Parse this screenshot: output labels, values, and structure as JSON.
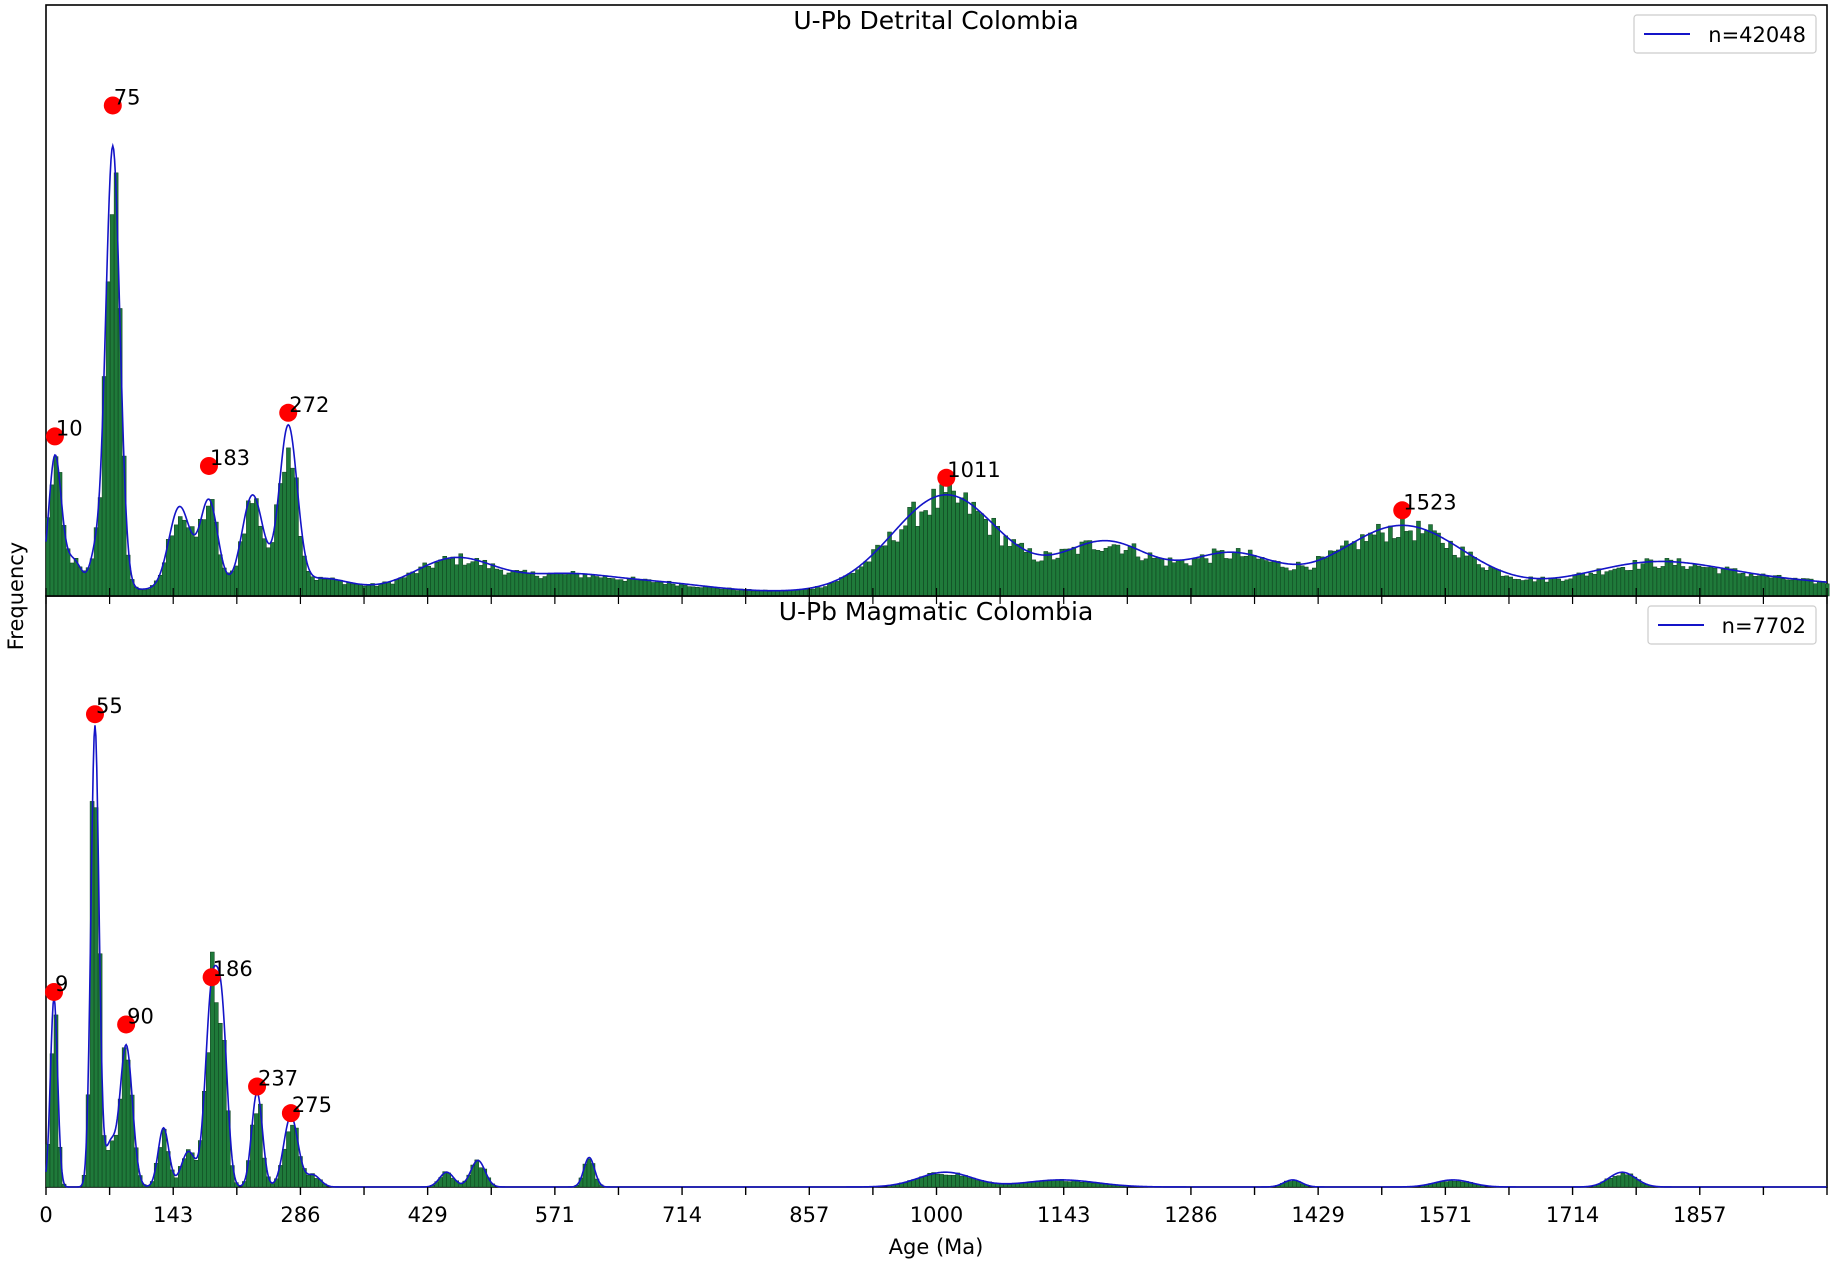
{
  "figure": {
    "ylabel": "Frequency",
    "xlabel": "Age (Ma)",
    "xlim": [
      0,
      2000
    ],
    "xticks": [
      "0",
      "143",
      "286",
      "429",
      "571",
      "714",
      "857",
      "1000",
      "1143",
      "1286",
      "1429",
      "1571",
      "1714",
      "1857"
    ]
  },
  "colors": {
    "bar_fill": "#1f7a3a",
    "bar_edge": "#0c3d1c",
    "kde_line": "#1414c8",
    "peak_marker": "#ff0000"
  },
  "chart_data": [
    {
      "type": "bar",
      "title": "U-Pb Detrital Colombia",
      "legend": {
        "label": "n=42048",
        "position": "top-right"
      },
      "ylim": [
        0,
        1.0
      ],
      "peaks": [
        {
          "x": 10,
          "y": 0.27,
          "label": "10"
        },
        {
          "x": 75,
          "y": 0.83,
          "label": "75"
        },
        {
          "x": 183,
          "y": 0.22,
          "label": "183"
        },
        {
          "x": 272,
          "y": 0.31,
          "label": "272"
        },
        {
          "x": 1011,
          "y": 0.2,
          "label": "1011"
        },
        {
          "x": 1523,
          "y": 0.145,
          "label": "1523"
        }
      ],
      "kde_components": [
        [
          10,
          7,
          0.22
        ],
        [
          75,
          8,
          0.75
        ],
        [
          30,
          10,
          0.05
        ],
        [
          55,
          6,
          0.05
        ],
        [
          150,
          12,
          0.14
        ],
        [
          183,
          10,
          0.15
        ],
        [
          232,
          12,
          0.16
        ],
        [
          272,
          10,
          0.27
        ],
        [
          310,
          30,
          0.02
        ],
        [
          460,
          45,
          0.055
        ],
        [
          580,
          50,
          0.025
        ],
        [
          680,
          60,
          0.015
        ],
        [
          1011,
          60,
          0.165
        ],
        [
          1190,
          50,
          0.085
        ],
        [
          1330,
          50,
          0.065
        ],
        [
          1523,
          70,
          0.115
        ],
        [
          1800,
          80,
          0.045
        ],
        [
          1950,
          120,
          0.02
        ]
      ],
      "baseline": 0.012
    },
    {
      "type": "bar",
      "title": "U-Pb Magmatic Colombia",
      "legend": {
        "label": "n=7702",
        "position": "top-right"
      },
      "ylim": [
        0,
        1.0
      ],
      "peaks": [
        {
          "x": 9,
          "y": 0.33,
          "label": "9"
        },
        {
          "x": 55,
          "y": 0.8,
          "label": "55"
        },
        {
          "x": 90,
          "y": 0.275,
          "label": "90"
        },
        {
          "x": 186,
          "y": 0.355,
          "label": "186"
        },
        {
          "x": 237,
          "y": 0.17,
          "label": "237"
        },
        {
          "x": 275,
          "y": 0.125,
          "label": "275"
        }
      ],
      "kde_components": [
        [
          9,
          4,
          0.32
        ],
        [
          55,
          4.5,
          0.78
        ],
        [
          72,
          6,
          0.07
        ],
        [
          90,
          7,
          0.24
        ],
        [
          132,
          6,
          0.1
        ],
        [
          160,
          8,
          0.06
        ],
        [
          186,
          7,
          0.32
        ],
        [
          198,
          6,
          0.25
        ],
        [
          237,
          6,
          0.16
        ],
        [
          275,
          8,
          0.12
        ],
        [
          300,
          8,
          0.02
        ],
        [
          450,
          8,
          0.025
        ],
        [
          485,
          8,
          0.045
        ],
        [
          610,
          6,
          0.05
        ],
        [
          1010,
          30,
          0.025
        ],
        [
          1140,
          40,
          0.012
        ],
        [
          1400,
          10,
          0.012
        ],
        [
          1580,
          20,
          0.012
        ],
        [
          1770,
          15,
          0.025
        ]
      ],
      "baseline": 0.0
    }
  ]
}
